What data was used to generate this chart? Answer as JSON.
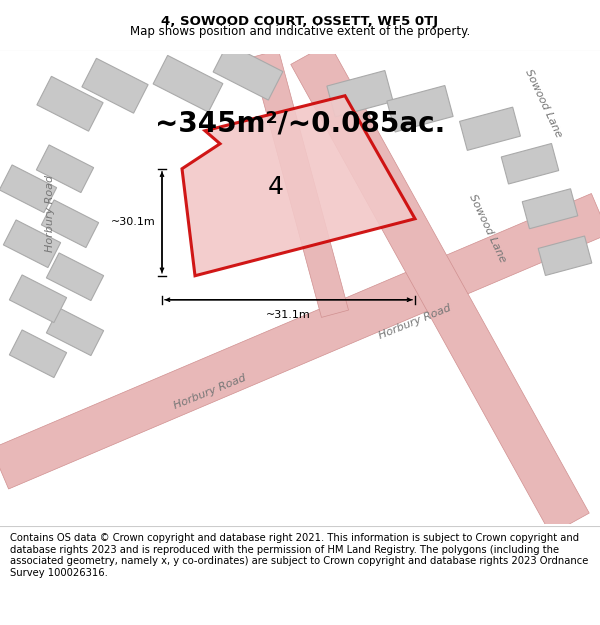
{
  "title": "4, SOWOOD COURT, OSSETT, WF5 0TJ",
  "subtitle": "Map shows position and indicative extent of the property.",
  "area_text": "~345m²/~0.085ac.",
  "label_number": "4",
  "dim_vertical": "~30.1m",
  "dim_horizontal": "~31.1m",
  "footer": "Contains OS data © Crown copyright and database right 2021. This information is subject to Crown copyright and database rights 2023 and is reproduced with the permission of HM Land Registry. The polygons (including the associated geometry, namely x, y co-ordinates) are subject to Crown copyright and database rights 2023 Ordnance Survey 100026316.",
  "bg_color": "#edecea",
  "plot_color": "#cc0000",
  "plot_fill": "#f2c8c8",
  "road_fill": "#e8b8b8",
  "road_edge": "#d09090",
  "building_color": "#c8c8c8",
  "building_edge": "#aaaaaa",
  "title_fontsize": 9.5,
  "subtitle_fontsize": 8.5,
  "area_fontsize": 20,
  "label_fontsize": 18,
  "dim_fontsize": 8,
  "road_label_fontsize": 8,
  "footer_fontsize": 7.2
}
